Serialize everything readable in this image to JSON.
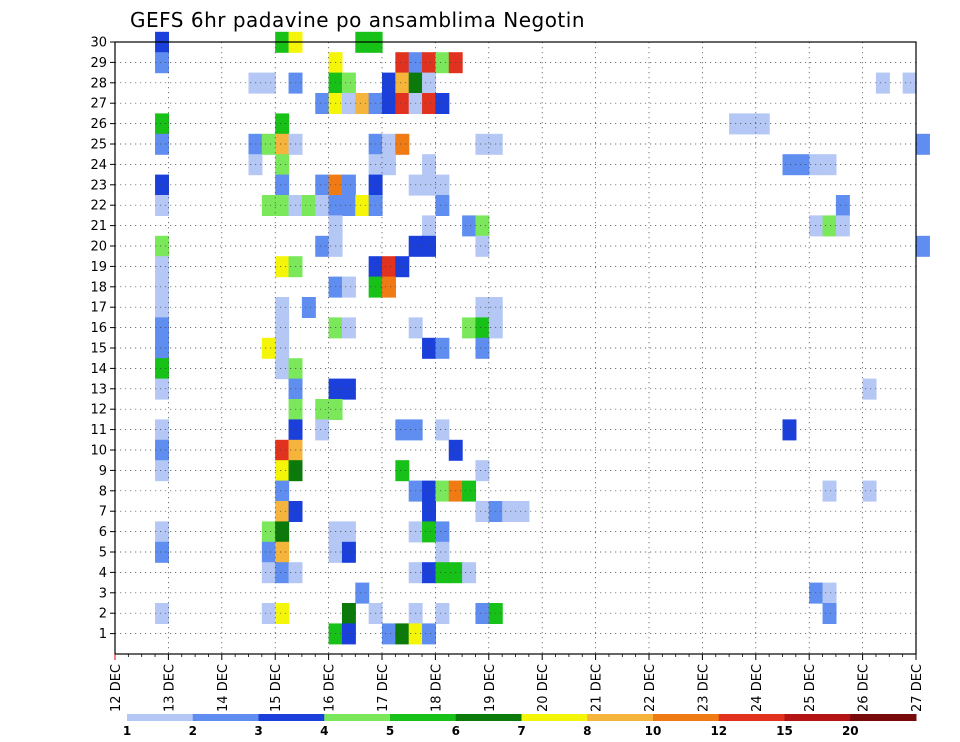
{
  "title": "GEFS 6hr padavine po ansamblima Negotin",
  "chart_data": {
    "type": "heatmap",
    "title": "GEFS 6hr padavine po ansamblima Negotin",
    "xlabel": "",
    "ylabel": "",
    "x_start": "12 DEC",
    "x_end": "27 DEC",
    "x_ticks": [
      "12 DEC",
      "13 DEC",
      "14 DEC",
      "15 DEC",
      "16 DEC",
      "17 DEC",
      "18 DEC",
      "19 DEC",
      "20 DEC",
      "21 DEC",
      "22 DEC",
      "23 DEC",
      "24 DEC",
      "25 DEC",
      "26 DEC",
      "27 DEC"
    ],
    "y_ticks": [
      "1",
      "2",
      "3",
      "4",
      "5",
      "6",
      "7",
      "8",
      "9",
      "10",
      "11",
      "12",
      "13",
      "14",
      "15",
      "16",
      "17",
      "18",
      "19",
      "20",
      "21",
      "22",
      "23",
      "24",
      "25",
      "26",
      "27",
      "28",
      "29",
      "30"
    ],
    "ylim": [
      0,
      30
    ],
    "grid": true,
    "legend_position": "bottom",
    "color_scale": {
      "colors": [
        "#b4c7f5",
        "#5f8ef0",
        "#1a3fdb",
        "#7ae85a",
        "#17c117",
        "#0b7a0b",
        "#f5f50a",
        "#f5b53c",
        "#f07a14",
        "#e0321e",
        "#b41414",
        "#780a0a"
      ],
      "labels": [
        "1",
        "2",
        "3",
        "4",
        "5",
        "6",
        "7",
        "8",
        "10",
        "12",
        "15",
        "20"
      ]
    },
    "cells": [
      {
        "m": 30,
        "d": "12 DEC",
        "h": 18,
        "c": 2
      },
      {
        "m": 30,
        "d": "15 DEC",
        "h": 0,
        "c": 4
      },
      {
        "m": 30,
        "d": "15 DEC",
        "h": 6,
        "c": 6
      },
      {
        "m": 30,
        "d": "16 DEC",
        "h": 18,
        "c": 4
      },
      {
        "m": 30,
        "d": "16 DEC",
        "h": 12,
        "c": 4
      },
      {
        "m": 29,
        "d": "12 DEC",
        "h": 18,
        "c": 1
      },
      {
        "m": 29,
        "d": "16 DEC",
        "h": 0,
        "c": 6
      },
      {
        "m": 29,
        "d": "17 DEC",
        "h": 6,
        "c": 9
      },
      {
        "m": 29,
        "d": "17 DEC",
        "h": 12,
        "c": 1
      },
      {
        "m": 29,
        "d": "17 DEC",
        "h": 18,
        "c": 9
      },
      {
        "m": 29,
        "d": "18 DEC",
        "h": 0,
        "c": 3
      },
      {
        "m": 29,
        "d": "18 DEC",
        "h": 6,
        "c": 9
      },
      {
        "m": 28,
        "d": "14 DEC",
        "h": 12,
        "c": 0
      },
      {
        "m": 28,
        "d": "14 DEC",
        "h": 18,
        "c": 0
      },
      {
        "m": 28,
        "d": "15 DEC",
        "h": 6,
        "c": 1
      },
      {
        "m": 28,
        "d": "16 DEC",
        "h": 0,
        "c": 4
      },
      {
        "m": 28,
        "d": "16 DEC",
        "h": 6,
        "c": 3
      },
      {
        "m": 28,
        "d": "17 DEC",
        "h": 0,
        "c": 2
      },
      {
        "m": 28,
        "d": "17 DEC",
        "h": 6,
        "c": 7
      },
      {
        "m": 28,
        "d": "17 DEC",
        "h": 12,
        "c": 5
      },
      {
        "m": 28,
        "d": "17 DEC",
        "h": 18,
        "c": 0
      },
      {
        "m": 28,
        "d": "26 DEC",
        "h": 6,
        "c": 0
      },
      {
        "m": 28,
        "d": "26 DEC",
        "h": 18,
        "c": 0
      },
      {
        "m": 27,
        "d": "15 DEC",
        "h": 18,
        "c": 1
      },
      {
        "m": 27,
        "d": "16 DEC",
        "h": 0,
        "c": 6
      },
      {
        "m": 27,
        "d": "16 DEC",
        "h": 6,
        "c": 0
      },
      {
        "m": 27,
        "d": "16 DEC",
        "h": 12,
        "c": 7
      },
      {
        "m": 27,
        "d": "16 DEC",
        "h": 18,
        "c": 1
      },
      {
        "m": 27,
        "d": "17 DEC",
        "h": 0,
        "c": 2
      },
      {
        "m": 27,
        "d": "17 DEC",
        "h": 6,
        "c": 9
      },
      {
        "m": 27,
        "d": "17 DEC",
        "h": 12,
        "c": 0
      },
      {
        "m": 27,
        "d": "17 DEC",
        "h": 18,
        "c": 9
      },
      {
        "m": 27,
        "d": "18 DEC",
        "h": 0,
        "c": 2
      },
      {
        "m": 26,
        "d": "12 DEC",
        "h": 18,
        "c": 4
      },
      {
        "m": 26,
        "d": "15 DEC",
        "h": 0,
        "c": 4
      },
      {
        "m": 26,
        "d": "23 DEC",
        "h": 12,
        "c": 0
      },
      {
        "m": 26,
        "d": "23 DEC",
        "h": 18,
        "c": 0
      },
      {
        "m": 26,
        "d": "24 DEC",
        "h": 0,
        "c": 0
      },
      {
        "m": 25,
        "d": "12 DEC",
        "h": 18,
        "c": 1
      },
      {
        "m": 25,
        "d": "14 DEC",
        "h": 12,
        "c": 1
      },
      {
        "m": 25,
        "d": "14 DEC",
        "h": 18,
        "c": 3
      },
      {
        "m": 25,
        "d": "15 DEC",
        "h": 0,
        "c": 7
      },
      {
        "m": 25,
        "d": "15 DEC",
        "h": 6,
        "c": 0
      },
      {
        "m": 25,
        "d": "16 DEC",
        "h": 18,
        "c": 1
      },
      {
        "m": 25,
        "d": "17 DEC",
        "h": 0,
        "c": 0
      },
      {
        "m": 25,
        "d": "17 DEC",
        "h": 6,
        "c": 8
      },
      {
        "m": 25,
        "d": "18 DEC",
        "h": 18,
        "c": 0
      },
      {
        "m": 25,
        "d": "19 DEC",
        "h": 0,
        "c": 0
      },
      {
        "m": 25,
        "d": "27 DEC",
        "h": 0,
        "c": 1
      },
      {
        "m": 24,
        "d": "14 DEC",
        "h": 12,
        "c": 0
      },
      {
        "m": 24,
        "d": "15 DEC",
        "h": 0,
        "c": 3
      },
      {
        "m": 24,
        "d": "16 DEC",
        "h": 18,
        "c": 0
      },
      {
        "m": 24,
        "d": "17 DEC",
        "h": 0,
        "c": 0
      },
      {
        "m": 24,
        "d": "17 DEC",
        "h": 18,
        "c": 0
      },
      {
        "m": 24,
        "d": "24 DEC",
        "h": 12,
        "c": 1
      },
      {
        "m": 24,
        "d": "24 DEC",
        "h": 18,
        "c": 1
      },
      {
        "m": 24,
        "d": "25 DEC",
        "h": 0,
        "c": 0
      },
      {
        "m": 24,
        "d": "25 DEC",
        "h": 6,
        "c": 0
      },
      {
        "m": 23,
        "d": "12 DEC",
        "h": 18,
        "c": 2
      },
      {
        "m": 23,
        "d": "15 DEC",
        "h": 0,
        "c": 1
      },
      {
        "m": 23,
        "d": "15 DEC",
        "h": 18,
        "c": 1
      },
      {
        "m": 23,
        "d": "16 DEC",
        "h": 0,
        "c": 8
      },
      {
        "m": 23,
        "d": "16 DEC",
        "h": 6,
        "c": 1
      },
      {
        "m": 23,
        "d": "16 DEC",
        "h": 18,
        "c": 2
      },
      {
        "m": 23,
        "d": "17 DEC",
        "h": 12,
        "c": 0
      },
      {
        "m": 23,
        "d": "17 DEC",
        "h": 18,
        "c": 0
      },
      {
        "m": 23,
        "d": "18 DEC",
        "h": 0,
        "c": 0
      },
      {
        "m": 22,
        "d": "12 DEC",
        "h": 18,
        "c": 0
      },
      {
        "m": 22,
        "d": "14 DEC",
        "h": 18,
        "c": 3
      },
      {
        "m": 22,
        "d": "15 DEC",
        "h": 0,
        "c": 3
      },
      {
        "m": 22,
        "d": "15 DEC",
        "h": 6,
        "c": 0
      },
      {
        "m": 22,
        "d": "15 DEC",
        "h": 12,
        "c": 3
      },
      {
        "m": 22,
        "d": "15 DEC",
        "h": 18,
        "c": 0
      },
      {
        "m": 22,
        "d": "16 DEC",
        "h": 0,
        "c": 1
      },
      {
        "m": 22,
        "d": "16 DEC",
        "h": 6,
        "c": 1
      },
      {
        "m": 22,
        "d": "16 DEC",
        "h": 12,
        "c": 6
      },
      {
        "m": 22,
        "d": "16 DEC",
        "h": 18,
        "c": 1
      },
      {
        "m": 22,
        "d": "18 DEC",
        "h": 0,
        "c": 1
      },
      {
        "m": 22,
        "d": "25 DEC",
        "h": 12,
        "c": 1
      },
      {
        "m": 21,
        "d": "16 DEC",
        "h": 0,
        "c": 0
      },
      {
        "m": 21,
        "d": "17 DEC",
        "h": 18,
        "c": 0
      },
      {
        "m": 21,
        "d": "18 DEC",
        "h": 12,
        "c": 1
      },
      {
        "m": 21,
        "d": "18 DEC",
        "h": 18,
        "c": 3
      },
      {
        "m": 21,
        "d": "25 DEC",
        "h": 0,
        "c": 0
      },
      {
        "m": 21,
        "d": "25 DEC",
        "h": 6,
        "c": 3
      },
      {
        "m": 21,
        "d": "25 DEC",
        "h": 12,
        "c": 0
      },
      {
        "m": 20,
        "d": "12 DEC",
        "h": 18,
        "c": 3
      },
      {
        "m": 20,
        "d": "15 DEC",
        "h": 18,
        "c": 1
      },
      {
        "m": 20,
        "d": "16 DEC",
        "h": 0,
        "c": 0
      },
      {
        "m": 20,
        "d": "17 DEC",
        "h": 12,
        "c": 2
      },
      {
        "m": 20,
        "d": "17 DEC",
        "h": 18,
        "c": 2
      },
      {
        "m": 20,
        "d": "18 DEC",
        "h": 18,
        "c": 0
      },
      {
        "m": 20,
        "d": "27 DEC",
        "h": 0,
        "c": 1
      },
      {
        "m": 19,
        "d": "12 DEC",
        "h": 18,
        "c": 0
      },
      {
        "m": 19,
        "d": "15 DEC",
        "h": 0,
        "c": 6
      },
      {
        "m": 19,
        "d": "15 DEC",
        "h": 6,
        "c": 3
      },
      {
        "m": 19,
        "d": "16 DEC",
        "h": 18,
        "c": 2
      },
      {
        "m": 19,
        "d": "17 DEC",
        "h": 0,
        "c": 9
      },
      {
        "m": 19,
        "d": "17 DEC",
        "h": 6,
        "c": 2
      },
      {
        "m": 18,
        "d": "12 DEC",
        "h": 18,
        "c": 0
      },
      {
        "m": 18,
        "d": "16 DEC",
        "h": 0,
        "c": 1
      },
      {
        "m": 18,
        "d": "16 DEC",
        "h": 6,
        "c": 0
      },
      {
        "m": 18,
        "d": "16 DEC",
        "h": 18,
        "c": 4
      },
      {
        "m": 18,
        "d": "17 DEC",
        "h": 0,
        "c": 8
      },
      {
        "m": 17,
        "d": "12 DEC",
        "h": 18,
        "c": 0
      },
      {
        "m": 17,
        "d": "15 DEC",
        "h": 0,
        "c": 0
      },
      {
        "m": 17,
        "d": "15 DEC",
        "h": 12,
        "c": 1
      },
      {
        "m": 17,
        "d": "18 DEC",
        "h": 18,
        "c": 0
      },
      {
        "m": 17,
        "d": "19 DEC",
        "h": 0,
        "c": 0
      },
      {
        "m": 16,
        "d": "12 DEC",
        "h": 18,
        "c": 1
      },
      {
        "m": 16,
        "d": "15 DEC",
        "h": 0,
        "c": 0
      },
      {
        "m": 16,
        "d": "16 DEC",
        "h": 0,
        "c": 3
      },
      {
        "m": 16,
        "d": "16 DEC",
        "h": 6,
        "c": 0
      },
      {
        "m": 16,
        "d": "17 DEC",
        "h": 12,
        "c": 0
      },
      {
        "m": 16,
        "d": "18 DEC",
        "h": 12,
        "c": 3
      },
      {
        "m": 16,
        "d": "18 DEC",
        "h": 18,
        "c": 4
      },
      {
        "m": 16,
        "d": "19 DEC",
        "h": 0,
        "c": 0
      },
      {
        "m": 15,
        "d": "12 DEC",
        "h": 18,
        "c": 1
      },
      {
        "m": 15,
        "d": "14 DEC",
        "h": 18,
        "c": 6
      },
      {
        "m": 15,
        "d": "15 DEC",
        "h": 0,
        "c": 0
      },
      {
        "m": 15,
        "d": "17 DEC",
        "h": 18,
        "c": 2
      },
      {
        "m": 15,
        "d": "18 DEC",
        "h": 0,
        "c": 1
      },
      {
        "m": 15,
        "d": "18 DEC",
        "h": 18,
        "c": 1
      },
      {
        "m": 14,
        "d": "12 DEC",
        "h": 18,
        "c": 4
      },
      {
        "m": 14,
        "d": "15 DEC",
        "h": 0,
        "c": 0
      },
      {
        "m": 14,
        "d": "15 DEC",
        "h": 6,
        "c": 3
      },
      {
        "m": 13,
        "d": "12 DEC",
        "h": 18,
        "c": 0
      },
      {
        "m": 13,
        "d": "15 DEC",
        "h": 6,
        "c": 1
      },
      {
        "m": 13,
        "d": "16 DEC",
        "h": 0,
        "c": 2
      },
      {
        "m": 13,
        "d": "16 DEC",
        "h": 6,
        "c": 2
      },
      {
        "m": 13,
        "d": "26 DEC",
        "h": 0,
        "c": 0
      },
      {
        "m": 12,
        "d": "15 DEC",
        "h": 6,
        "c": 3
      },
      {
        "m": 12,
        "d": "15 DEC",
        "h": 18,
        "c": 3
      },
      {
        "m": 12,
        "d": "16 DEC",
        "h": 0,
        "c": 3
      },
      {
        "m": 11,
        "d": "12 DEC",
        "h": 18,
        "c": 0
      },
      {
        "m": 11,
        "d": "15 DEC",
        "h": 6,
        "c": 2
      },
      {
        "m": 11,
        "d": "15 DEC",
        "h": 18,
        "c": 0
      },
      {
        "m": 11,
        "d": "17 DEC",
        "h": 6,
        "c": 1
      },
      {
        "m": 11,
        "d": "17 DEC",
        "h": 12,
        "c": 1
      },
      {
        "m": 11,
        "d": "18 DEC",
        "h": 0,
        "c": 0
      },
      {
        "m": 11,
        "d": "24 DEC",
        "h": 12,
        "c": 2
      },
      {
        "m": 10,
        "d": "12 DEC",
        "h": 18,
        "c": 1
      },
      {
        "m": 10,
        "d": "15 DEC",
        "h": 0,
        "c": 9
      },
      {
        "m": 10,
        "d": "15 DEC",
        "h": 6,
        "c": 7
      },
      {
        "m": 10,
        "d": "18 DEC",
        "h": 6,
        "c": 2
      },
      {
        "m": 9,
        "d": "12 DEC",
        "h": 18,
        "c": 0
      },
      {
        "m": 9,
        "d": "15 DEC",
        "h": 0,
        "c": 6
      },
      {
        "m": 9,
        "d": "15 DEC",
        "h": 6,
        "c": 5
      },
      {
        "m": 9,
        "d": "17 DEC",
        "h": 6,
        "c": 4
      },
      {
        "m": 9,
        "d": "18 DEC",
        "h": 18,
        "c": 0
      },
      {
        "m": 8,
        "d": "15 DEC",
        "h": 0,
        "c": 1
      },
      {
        "m": 8,
        "d": "17 DEC",
        "h": 12,
        "c": 1
      },
      {
        "m": 8,
        "d": "17 DEC",
        "h": 18,
        "c": 2
      },
      {
        "m": 8,
        "d": "18 DEC",
        "h": 0,
        "c": 3
      },
      {
        "m": 8,
        "d": "18 DEC",
        "h": 6,
        "c": 8
      },
      {
        "m": 8,
        "d": "18 DEC",
        "h": 12,
        "c": 4
      },
      {
        "m": 8,
        "d": "25 DEC",
        "h": 6,
        "c": 0
      },
      {
        "m": 8,
        "d": "26 DEC",
        "h": 0,
        "c": 0
      },
      {
        "m": 7,
        "d": "15 DEC",
        "h": 0,
        "c": 7
      },
      {
        "m": 7,
        "d": "15 DEC",
        "h": 6,
        "c": 2
      },
      {
        "m": 7,
        "d": "17 DEC",
        "h": 18,
        "c": 2
      },
      {
        "m": 7,
        "d": "18 DEC",
        "h": 18,
        "c": 0
      },
      {
        "m": 7,
        "d": "19 DEC",
        "h": 0,
        "c": 1
      },
      {
        "m": 7,
        "d": "19 DEC",
        "h": 6,
        "c": 0
      },
      {
        "m": 7,
        "d": "19 DEC",
        "h": 12,
        "c": 0
      },
      {
        "m": 6,
        "d": "12 DEC",
        "h": 18,
        "c": 0
      },
      {
        "m": 6,
        "d": "14 DEC",
        "h": 18,
        "c": 3
      },
      {
        "m": 6,
        "d": "15 DEC",
        "h": 0,
        "c": 5
      },
      {
        "m": 6,
        "d": "16 DEC",
        "h": 0,
        "c": 0
      },
      {
        "m": 6,
        "d": "16 DEC",
        "h": 6,
        "c": 0
      },
      {
        "m": 6,
        "d": "17 DEC",
        "h": 12,
        "c": 0
      },
      {
        "m": 6,
        "d": "17 DEC",
        "h": 18,
        "c": 4
      },
      {
        "m": 6,
        "d": "18 DEC",
        "h": 0,
        "c": 1
      },
      {
        "m": 5,
        "d": "12 DEC",
        "h": 18,
        "c": 1
      },
      {
        "m": 5,
        "d": "14 DEC",
        "h": 18,
        "c": 1
      },
      {
        "m": 5,
        "d": "15 DEC",
        "h": 0,
        "c": 7
      },
      {
        "m": 5,
        "d": "16 DEC",
        "h": 0,
        "c": 0
      },
      {
        "m": 5,
        "d": "16 DEC",
        "h": 6,
        "c": 2
      },
      {
        "m": 5,
        "d": "18 DEC",
        "h": 0,
        "c": 0
      },
      {
        "m": 4,
        "d": "14 DEC",
        "h": 18,
        "c": 0
      },
      {
        "m": 4,
        "d": "15 DEC",
        "h": 0,
        "c": 1
      },
      {
        "m": 4,
        "d": "15 DEC",
        "h": 6,
        "c": 0
      },
      {
        "m": 4,
        "d": "17 DEC",
        "h": 12,
        "c": 0
      },
      {
        "m": 4,
        "d": "17 DEC",
        "h": 18,
        "c": 2
      },
      {
        "m": 4,
        "d": "18 DEC",
        "h": 0,
        "c": 4
      },
      {
        "m": 4,
        "d": "18 DEC",
        "h": 6,
        "c": 4
      },
      {
        "m": 4,
        "d": "18 DEC",
        "h": 12,
        "c": 0
      },
      {
        "m": 3,
        "d": "16 DEC",
        "h": 12,
        "c": 1
      },
      {
        "m": 3,
        "d": "25 DEC",
        "h": 0,
        "c": 1
      },
      {
        "m": 3,
        "d": "25 DEC",
        "h": 6,
        "c": 0
      },
      {
        "m": 2,
        "d": "12 DEC",
        "h": 18,
        "c": 0
      },
      {
        "m": 2,
        "d": "14 DEC",
        "h": 18,
        "c": 0
      },
      {
        "m": 2,
        "d": "15 DEC",
        "h": 0,
        "c": 6
      },
      {
        "m": 2,
        "d": "16 DEC",
        "h": 6,
        "c": 5
      },
      {
        "m": 2,
        "d": "16 DEC",
        "h": 18,
        "c": 0
      },
      {
        "m": 2,
        "d": "17 DEC",
        "h": 12,
        "c": 0
      },
      {
        "m": 2,
        "d": "18 DEC",
        "h": 0,
        "c": 0
      },
      {
        "m": 2,
        "d": "18 DEC",
        "h": 18,
        "c": 1
      },
      {
        "m": 2,
        "d": "19 DEC",
        "h": 0,
        "c": 4
      },
      {
        "m": 2,
        "d": "25 DEC",
        "h": 6,
        "c": 1
      },
      {
        "m": 1,
        "d": "16 DEC",
        "h": 0,
        "c": 4
      },
      {
        "m": 1,
        "d": "16 DEC",
        "h": 6,
        "c": 2
      },
      {
        "m": 1,
        "d": "17 DEC",
        "h": 0,
        "c": 1
      },
      {
        "m": 1,
        "d": "17 DEC",
        "h": 6,
        "c": 5
      },
      {
        "m": 1,
        "d": "17 DEC",
        "h": 12,
        "c": 6
      },
      {
        "m": 1,
        "d": "17 DEC",
        "h": 18,
        "c": 1
      }
    ]
  }
}
